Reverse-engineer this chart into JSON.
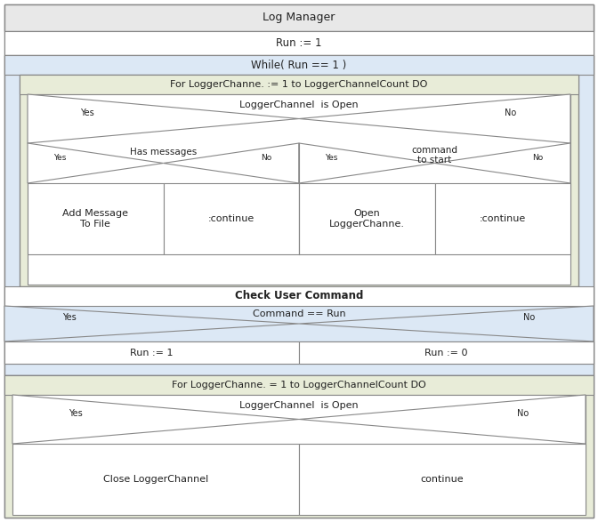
{
  "title": "Log Manager",
  "bg_blue": "#dce8f0",
  "bg_green": "#e8ecd8",
  "bg_white": "#ffffff",
  "bg_header": "#e8e8e8",
  "border_color": "#aaaaaa",
  "text_color": "#222222",
  "blocks": {
    "log_manager": "Log Manager",
    "run_init": "Run := 1",
    "while_label": "While( Run == 1 )",
    "for_label_1": "For LoggerChanne. := 1 to LoggerChannelCount DO",
    "logger_open_1": "LoggerChannel  is Open",
    "has_messages": "Has messages",
    "cmd_to_start": "command\nto start",
    "add_message": "Add Message\nTo File",
    "continue_1": ":continue",
    "open_logger": "Open\nLoggerChanne.",
    "continue_2": ":continue",
    "check_user": "Check User Command",
    "command_run": "Command == Run",
    "run_1": "Run := 1",
    "run_0": "Run := 0",
    "for_label_2": "For LoggerChanne. = 1 to LoggerChannelCount DO",
    "logger_open_2": "LoggerChannel  is Open",
    "close_logger": "Close LoggerChannel",
    "continue_3": "continue"
  }
}
